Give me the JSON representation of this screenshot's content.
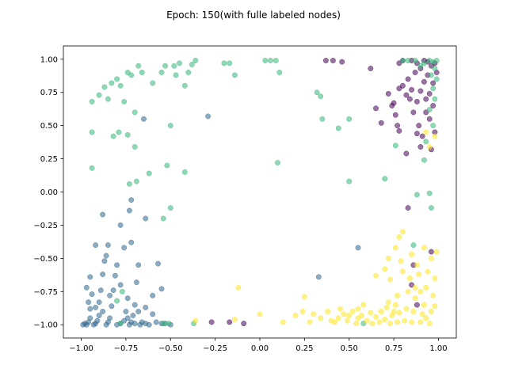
{
  "chart_data": {
    "type": "scatter",
    "title": "Epoch: 150(with fulle labeled nodes)",
    "xlabel": "",
    "ylabel": "",
    "xlim": [
      -1.1,
      1.1
    ],
    "ylim": [
      -1.1,
      1.1
    ],
    "xticks": [
      -1.0,
      -0.75,
      -0.5,
      -0.25,
      0.0,
      0.25,
      0.5,
      0.75,
      1.0
    ],
    "xtick_labels": [
      "−1.00",
      "−0.75",
      "−0.50",
      "−0.25",
      "0.00",
      "0.25",
      "0.50",
      "0.75",
      "1.00"
    ],
    "yticks": [
      -1.0,
      -0.75,
      -0.5,
      -0.25,
      0.0,
      0.25,
      0.5,
      0.75,
      1.0
    ],
    "ytick_labels": [
      "−1.00",
      "−0.75",
      "−0.50",
      "−0.25",
      "0.00",
      "0.25",
      "0.50",
      "0.75",
      "1.00"
    ],
    "grid": false,
    "series": [
      {
        "color": "#440154",
        "points": [
          [
            0.37,
            0.99
          ],
          [
            0.41,
            0.99
          ],
          [
            0.46,
            0.98
          ],
          [
            0.62,
            0.93
          ],
          [
            0.65,
            0.63
          ],
          [
            0.72,
            0.74
          ],
          [
            0.74,
            0.65
          ],
          [
            0.76,
            0.58
          ],
          [
            0.77,
            0.5
          ],
          [
            0.78,
            0.78
          ],
          [
            0.78,
            0.97
          ],
          [
            0.8,
            0.99
          ],
          [
            0.8,
            0.8
          ],
          [
            0.82,
            0.73
          ],
          [
            0.84,
            0.7
          ],
          [
            0.85,
            0.99
          ],
          [
            0.85,
            0.77
          ],
          [
            0.86,
            0.6
          ],
          [
            0.88,
            0.97
          ],
          [
            0.88,
            0.68
          ],
          [
            0.89,
            0.5
          ],
          [
            0.9,
            0.76
          ],
          [
            0.9,
            0.93
          ],
          [
            0.91,
            0.42
          ],
          [
            0.92,
            0.99
          ],
          [
            0.92,
            0.83
          ],
          [
            0.93,
            0.7
          ],
          [
            0.93,
            0.6
          ],
          [
            0.94,
            0.98
          ],
          [
            0.94,
            0.88
          ],
          [
            0.95,
            0.74
          ],
          [
            0.95,
            0.55
          ],
          [
            0.96,
            0.95
          ],
          [
            0.97,
            0.82
          ],
          [
            0.97,
            0.65
          ],
          [
            0.98,
            0.45
          ],
          [
            0.98,
            0.97
          ],
          [
            0.99,
            0.9
          ],
          [
            0.96,
            0.32
          ],
          [
            0.9,
            0.34
          ],
          [
            0.88,
            0.44
          ],
          [
            0.82,
            0.29
          ],
          [
            0.78,
            0.46
          ],
          [
            0.75,
            0.67
          ],
          [
            0.96,
            -0.45
          ],
          [
            0.85,
            -0.7
          ],
          [
            0.88,
            -0.85
          ],
          [
            0.83,
            -0.12
          ],
          [
            0.86,
            -0.55
          ],
          [
            -0.09,
            -0.99
          ],
          [
            -0.17,
            -0.98
          ],
          [
            -0.27,
            -0.98
          ],
          [
            0.68,
            0.52
          ],
          [
            0.83,
            0.85
          ],
          [
            0.87,
            0.9
          ]
        ]
      },
      {
        "color": "#31688e",
        "points": [
          [
            -0.99,
            -1.0
          ],
          [
            -0.98,
            -0.99
          ],
          [
            -0.97,
            -1.0
          ],
          [
            -0.96,
            -0.98
          ],
          [
            -0.95,
            -0.95
          ],
          [
            -0.95,
            -0.88
          ],
          [
            -0.94,
            -0.77
          ],
          [
            -0.93,
            -1.0
          ],
          [
            -0.92,
            -0.99
          ],
          [
            -0.91,
            -0.97
          ],
          [
            -0.9,
            -0.93
          ],
          [
            -0.9,
            -0.83
          ],
          [
            -0.89,
            -0.74
          ],
          [
            -0.88,
            -0.62
          ],
          [
            -0.87,
            -0.52
          ],
          [
            -0.86,
            -1.0
          ],
          [
            -0.85,
            -0.98
          ],
          [
            -0.84,
            -0.95
          ],
          [
            -0.83,
            -0.86
          ],
          [
            -0.82,
            -0.74
          ],
          [
            -0.81,
            -0.63
          ],
          [
            -0.8,
            -1.0
          ],
          [
            -0.78,
            -0.99
          ],
          [
            -0.76,
            -0.97
          ],
          [
            -0.75,
            -0.9
          ],
          [
            -0.74,
            -0.8
          ],
          [
            -0.73,
            -1.0
          ],
          [
            -0.72,
            -0.98
          ],
          [
            -0.71,
            -0.93
          ],
          [
            -0.7,
            -0.85
          ],
          [
            -0.69,
            -0.68
          ],
          [
            -0.68,
            -0.55
          ],
          [
            -0.67,
            -1.0
          ],
          [
            -0.66,
            -0.98
          ],
          [
            -0.64,
            -0.99
          ],
          [
            -0.62,
            -1.0
          ],
          [
            -0.6,
            -0.92
          ],
          [
            -0.57,
            -0.54
          ],
          [
            -0.5,
            -1.0
          ],
          [
            -0.55,
            -0.73
          ],
          [
            -0.64,
            -0.2
          ],
          [
            -0.65,
            0.55
          ],
          [
            -0.72,
            -0.06
          ],
          [
            -0.86,
            -0.48
          ],
          [
            -0.85,
            -0.4
          ],
          [
            -0.8,
            -0.55
          ],
          [
            -0.76,
            -0.42
          ],
          [
            -0.88,
            -0.17
          ],
          [
            -0.72,
            -0.38
          ],
          [
            -0.78,
            -0.25
          ],
          [
            -0.73,
            -0.14
          ],
          [
            -0.29,
            0.57
          ],
          [
            0.33,
            -0.64
          ],
          [
            0.55,
            -0.42
          ],
          [
            -0.92,
            -0.4
          ],
          [
            -0.95,
            -0.64
          ],
          [
            -0.97,
            -0.72
          ],
          [
            -0.96,
            -0.83
          ],
          [
            -0.92,
            -0.87
          ],
          [
            -0.88,
            -0.9
          ],
          [
            -0.84,
            -0.78
          ],
          [
            -0.78,
            -0.7
          ],
          [
            -0.74,
            -0.95
          ],
          [
            -0.7,
            -0.99
          ],
          [
            -0.68,
            -0.9
          ],
          [
            -0.64,
            -0.87
          ],
          [
            -0.6,
            -0.78
          ],
          [
            -0.58,
            -0.98
          ],
          [
            -0.55,
            -0.99
          ],
          [
            -0.53,
            -0.99
          ]
        ]
      },
      {
        "color": "#35b779",
        "points": [
          [
            -0.94,
            0.68
          ],
          [
            -0.9,
            0.73
          ],
          [
            -0.87,
            0.79
          ],
          [
            -0.85,
            0.7
          ],
          [
            -0.83,
            0.82
          ],
          [
            -0.8,
            0.85
          ],
          [
            -0.78,
            0.8
          ],
          [
            -0.76,
            0.68
          ],
          [
            -0.74,
            0.9
          ],
          [
            -0.72,
            0.88
          ],
          [
            -0.7,
            0.6
          ],
          [
            -0.68,
            0.95
          ],
          [
            -0.66,
            0.9
          ],
          [
            -0.6,
            0.82
          ],
          [
            -0.55,
            0.9
          ],
          [
            -0.53,
            0.95
          ],
          [
            -0.5,
            0.5
          ],
          [
            -0.48,
            0.95
          ],
          [
            -0.47,
            0.88
          ],
          [
            -0.45,
            0.97
          ],
          [
            -0.42,
            0.8
          ],
          [
            -0.4,
            0.9
          ],
          [
            -0.38,
            0.96
          ],
          [
            -0.36,
            0.99
          ],
          [
            -0.2,
            0.97
          ],
          [
            -0.17,
            0.97
          ],
          [
            -0.14,
            0.88
          ],
          [
            0.03,
            0.99
          ],
          [
            0.06,
            0.99
          ],
          [
            0.09,
            0.99
          ],
          [
            0.11,
            0.9
          ],
          [
            0.32,
            0.75
          ],
          [
            0.34,
            0.72
          ],
          [
            0.35,
            0.55
          ],
          [
            0.44,
            0.48
          ],
          [
            0.5,
            0.55
          ],
          [
            0.5,
            0.08
          ],
          [
            0.8,
            0.99
          ],
          [
            0.83,
            0.99
          ],
          [
            0.87,
            0.99
          ],
          [
            0.9,
            0.95
          ],
          [
            0.92,
            0.97
          ],
          [
            0.95,
            0.99
          ],
          [
            0.97,
            0.98
          ],
          [
            0.99,
            0.99
          ],
          [
            0.98,
            0.93
          ],
          [
            0.96,
            0.88
          ],
          [
            0.99,
            0.85
          ],
          [
            0.97,
            0.78
          ],
          [
            0.98,
            0.7
          ],
          [
            0.95,
            0.62
          ],
          [
            0.97,
            0.5
          ],
          [
            0.93,
            0.38
          ],
          [
            0.92,
            0.24
          ],
          [
            0.95,
            -0.01
          ],
          [
            0.96,
            -0.12
          ],
          [
            0.88,
            -0.02
          ],
          [
            0.76,
            0.35
          ],
          [
            0.7,
            0.1
          ],
          [
            0.1,
            0.22
          ],
          [
            -0.42,
            0.15
          ],
          [
            -0.5,
            -0.12
          ],
          [
            -0.54,
            -0.2
          ],
          [
            -0.52,
            0.2
          ],
          [
            -0.62,
            0.14
          ],
          [
            -0.69,
            0.08
          ],
          [
            -0.7,
            0.34
          ],
          [
            -0.73,
            0.06
          ],
          [
            -0.74,
            0.43
          ],
          [
            -0.79,
            0.45
          ],
          [
            -0.82,
            0.42
          ],
          [
            -0.94,
            0.45
          ],
          [
            -0.94,
            0.18
          ],
          [
            -0.78,
            -0.99
          ],
          [
            -0.54,
            -0.99
          ],
          [
            -0.51,
            -0.99
          ],
          [
            -0.37,
            -0.99
          ],
          [
            -0.8,
            -0.82
          ],
          [
            -0.77,
            -0.75
          ],
          [
            0.58,
            -0.99
          ],
          [
            0.86,
            -0.4
          ]
        ]
      },
      {
        "color": "#fde725",
        "points": [
          [
            -0.36,
            -0.97
          ],
          [
            -0.12,
            -0.72
          ],
          [
            -0.14,
            -0.96
          ],
          [
            0.0,
            -0.92
          ],
          [
            0.13,
            -0.98
          ],
          [
            0.2,
            -0.93
          ],
          [
            0.24,
            -0.9
          ],
          [
            0.25,
            -0.79
          ],
          [
            0.28,
            -0.98
          ],
          [
            0.3,
            -0.92
          ],
          [
            0.34,
            -0.95
          ],
          [
            0.38,
            -0.9
          ],
          [
            0.4,
            -0.97
          ],
          [
            0.42,
            -0.98
          ],
          [
            0.44,
            -0.95
          ],
          [
            0.45,
            -0.88
          ],
          [
            0.47,
            -0.92
          ],
          [
            0.49,
            -0.97
          ],
          [
            0.5,
            -0.93
          ],
          [
            0.52,
            -0.9
          ],
          [
            0.54,
            -0.99
          ],
          [
            0.55,
            -0.95
          ],
          [
            0.57,
            -0.93
          ],
          [
            0.58,
            -0.85
          ],
          [
            0.6,
            -0.97
          ],
          [
            0.62,
            -0.91
          ],
          [
            0.63,
            -0.99
          ],
          [
            0.65,
            -0.94
          ],
          [
            0.67,
            -0.98
          ],
          [
            0.68,
            -0.9
          ],
          [
            0.7,
            -0.96
          ],
          [
            0.71,
            -0.87
          ],
          [
            0.72,
            -0.83
          ],
          [
            0.73,
            -0.99
          ],
          [
            0.74,
            -0.93
          ],
          [
            0.76,
            -0.85
          ],
          [
            0.77,
            -0.98
          ],
          [
            0.78,
            -0.91
          ],
          [
            0.79,
            -0.52
          ],
          [
            0.8,
            -0.6
          ],
          [
            0.81,
            -0.97
          ],
          [
            0.82,
            -0.88
          ],
          [
            0.83,
            -0.75
          ],
          [
            0.84,
            -0.65
          ],
          [
            0.85,
            -0.98
          ],
          [
            0.86,
            -0.9
          ],
          [
            0.87,
            -0.8
          ],
          [
            0.88,
            -0.55
          ],
          [
            0.89,
            -0.62
          ],
          [
            0.9,
            -0.98
          ],
          [
            0.91,
            -0.92
          ],
          [
            0.92,
            -0.85
          ],
          [
            0.93,
            -0.72
          ],
          [
            0.94,
            -0.6
          ],
          [
            0.95,
            -0.99
          ],
          [
            0.96,
            -0.9
          ],
          [
            0.97,
            -0.78
          ],
          [
            0.98,
            -0.65
          ],
          [
            0.99,
            -0.45
          ],
          [
            0.96,
            -0.5
          ],
          [
            0.92,
            -0.42
          ],
          [
            0.85,
            -0.47
          ],
          [
            0.76,
            -0.42
          ],
          [
            0.8,
            -0.3
          ],
          [
            0.78,
            -0.34
          ],
          [
            0.72,
            -0.5
          ],
          [
            0.7,
            -0.58
          ],
          [
            0.65,
            -0.63
          ],
          [
            0.77,
            -0.78
          ],
          [
            0.87,
            -0.72
          ],
          [
            0.93,
            -0.95
          ],
          [
            0.98,
            -0.86
          ],
          [
            0.95,
            0.34
          ],
          [
            0.98,
            0.42
          ],
          [
            0.93,
            0.45
          ],
          [
            0.55,
            -0.88
          ],
          [
            0.75,
            -0.9
          ],
          [
            0.73,
            -0.66
          ],
          [
            0.9,
            -0.75
          ]
        ]
      }
    ]
  }
}
